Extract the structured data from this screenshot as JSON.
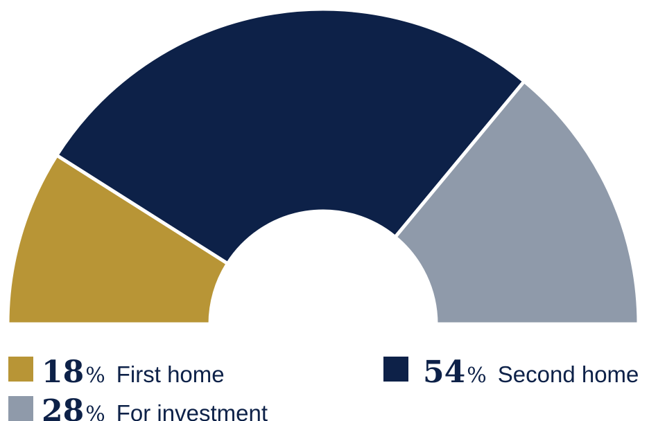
{
  "chart_data": {
    "type": "pie",
    "variant": "half-donut",
    "series": [
      {
        "name": "First home",
        "value": 18,
        "value_label": "18",
        "color": "#b89536"
      },
      {
        "name": "Second home",
        "value": 54,
        "value_label": "54",
        "color": "#0d2148"
      },
      {
        "name": "For investment",
        "value": 28,
        "value_label": "28",
        "color": "#8f9aaa"
      }
    ],
    "unit": "%",
    "legend_position": "bottom"
  }
}
